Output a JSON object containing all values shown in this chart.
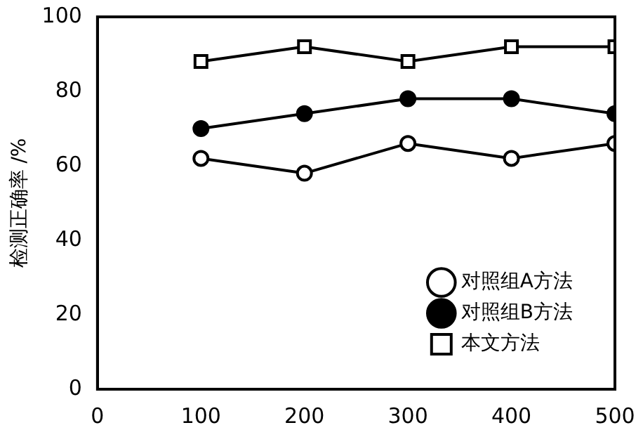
{
  "chart_data": {
    "type": "line",
    "ylabel": "检测正确率 /%",
    "x": [
      100,
      200,
      300,
      400,
      500
    ],
    "xlim": [
      0,
      500
    ],
    "xticks": [
      0,
      100,
      200,
      300,
      400,
      500
    ],
    "ylim": [
      0,
      100
    ],
    "yticks": [
      0,
      20,
      40,
      60,
      80,
      100
    ],
    "grid": false,
    "legend": "bottom right",
    "line_style": "solid",
    "series": [
      {
        "name": "对照组A方法",
        "color": "#000000",
        "colors": [
          "#ffffff",
          "#ffffff",
          "#ffffff",
          "#ffffff",
          "#ffffff"
        ],
        "marker": "circle",
        "values": [
          62,
          58,
          66,
          62,
          66
        ]
      },
      {
        "name": "对照组B方法",
        "color": "#000000",
        "colors": [
          "#000000",
          "#000000",
          "#000000",
          "#000000",
          "#000000"
        ],
        "marker": "circle",
        "values": [
          70,
          74,
          78,
          78,
          74
        ]
      },
      {
        "name": "本文方法",
        "color": "#000000",
        "colors": [
          "#ffffff",
          "#ffffff",
          "#ffffff",
          "#ffffff",
          "#ffffff"
        ],
        "marker": "square",
        "values": [
          88,
          92,
          88,
          92,
          92
        ]
      }
    ]
  }
}
